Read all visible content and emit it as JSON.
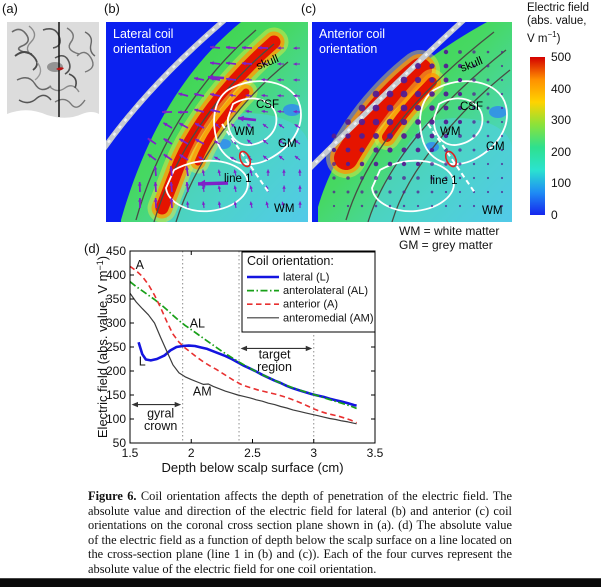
{
  "panel_a": {
    "label": "(a)"
  },
  "panel_b": {
    "label": "(b)",
    "title": [
      "Lateral coil",
      "orientation"
    ],
    "labels": {
      "skull": "skull",
      "csf": "CSF",
      "wm_upper": "WM",
      "gm": "GM",
      "line1": "line 1",
      "wm_lower": "WM"
    }
  },
  "panel_c": {
    "label": "(c)",
    "title": [
      "Anterior coil",
      "orientation"
    ],
    "labels": {
      "skull": "skull",
      "csf": "CSF",
      "wm_upper": "WM",
      "gm": "GM",
      "line1": "line 1",
      "wm_lower": "WM"
    }
  },
  "colorbar": {
    "title_lines": [
      "Electric field",
      "(abs. value,"
    ],
    "unit_base": "V m",
    "unit_sup": "−1",
    "unit_close": ")",
    "ticks": [
      "500",
      "400",
      "300",
      "200",
      "100",
      "0"
    ],
    "gradient_top_to_bottom": [
      "#d40000",
      "#ff9000",
      "#ffd300",
      "#8be23a",
      "#2ee08e",
      "#2be3cf",
      "#1f8df4",
      "#1526ee"
    ]
  },
  "matter_legend": {
    "line1": "WM = white matter",
    "line2": "GM = grey matter"
  },
  "chart_data": {
    "type": "line",
    "panel_label": "(d)",
    "xlabel": "Depth below scalp surface (cm)",
    "ylabel_base": "Electric field (abs. value, V m",
    "ylabel_sup": "−1",
    "ylabel_close": ")",
    "xlim": [
      1.5,
      3.5
    ],
    "ylim": [
      50,
      450
    ],
    "xticks": [
      "1.5",
      "2",
      "2.5",
      "3",
      "3.5"
    ],
    "xtick_values": [
      1.5,
      2,
      2.5,
      3,
      3.5
    ],
    "yticks": [
      50,
      100,
      150,
      200,
      250,
      300,
      350,
      400,
      450
    ],
    "dotted_x": [
      1.93,
      2.39,
      3.0
    ],
    "grid": "off",
    "legend": {
      "title": "Coil orientation:",
      "position": "upper right",
      "entries": [
        {
          "label": "lateral (L)",
          "color": "#1414e0",
          "width": 2.6,
          "dash": ""
        },
        {
          "label": "anterolateral (AL)",
          "color": "#18a018",
          "width": 1.7,
          "dash": "7 2.5 1.5 2.5"
        },
        {
          "label": "anterior (A)",
          "color": "#e83030",
          "width": 1.6,
          "dash": "5.5 3.5"
        },
        {
          "label": "anteromedial (AM)",
          "color": "#3c3c3c",
          "width": 1.2,
          "dash": ""
        }
      ]
    },
    "series": [
      {
        "name": "lateral (L)",
        "points": [
          [
            1.57,
            260
          ],
          [
            1.6,
            235
          ],
          [
            1.63,
            224
          ],
          [
            1.67,
            222
          ],
          [
            1.72,
            225
          ],
          [
            1.78,
            232
          ],
          [
            1.83,
            243
          ],
          [
            1.88,
            250
          ],
          [
            1.93,
            252
          ],
          [
            1.98,
            253
          ],
          [
            2.03,
            252
          ],
          [
            2.08,
            249
          ],
          [
            2.13,
            246
          ],
          [
            2.18,
            241
          ],
          [
            2.23,
            236
          ],
          [
            2.28,
            231
          ],
          [
            2.33,
            225
          ],
          [
            2.38,
            218
          ],
          [
            2.43,
            211
          ],
          [
            2.48,
            205
          ],
          [
            2.53,
            199
          ],
          [
            2.58,
            192
          ],
          [
            2.63,
            186
          ],
          [
            2.68,
            180
          ],
          [
            2.73,
            175
          ],
          [
            2.78,
            169
          ],
          [
            2.83,
            164
          ],
          [
            2.88,
            160
          ],
          [
            2.93,
            156
          ],
          [
            2.98,
            152
          ],
          [
            3.03,
            149
          ],
          [
            3.08,
            146
          ],
          [
            3.13,
            142
          ],
          [
            3.18,
            139
          ],
          [
            3.23,
            136
          ],
          [
            3.28,
            133
          ],
          [
            3.33,
            129
          ],
          [
            3.35,
            128
          ]
        ]
      },
      {
        "name": "anterolateral (AL)",
        "points": [
          [
            1.5,
            386
          ],
          [
            1.55,
            376
          ],
          [
            1.6,
            367
          ],
          [
            1.65,
            358
          ],
          [
            1.7,
            349
          ],
          [
            1.75,
            339
          ],
          [
            1.8,
            328
          ],
          [
            1.85,
            316
          ],
          [
            1.9,
            305
          ],
          [
            1.95,
            295
          ],
          [
            2.0,
            286
          ],
          [
            2.05,
            277
          ],
          [
            2.1,
            268
          ],
          [
            2.15,
            259
          ],
          [
            2.2,
            250
          ],
          [
            2.25,
            241
          ],
          [
            2.3,
            233
          ],
          [
            2.35,
            225
          ],
          [
            2.4,
            217
          ],
          [
            2.45,
            210
          ],
          [
            2.5,
            203
          ],
          [
            2.55,
            196
          ],
          [
            2.6,
            190
          ],
          [
            2.65,
            184
          ],
          [
            2.7,
            178
          ],
          [
            2.75,
            173
          ],
          [
            2.8,
            168
          ],
          [
            2.85,
            163
          ],
          [
            2.9,
            159
          ],
          [
            2.95,
            155
          ],
          [
            3.0,
            151
          ],
          [
            3.05,
            147
          ],
          [
            3.1,
            143
          ],
          [
            3.15,
            139
          ],
          [
            3.2,
            135
          ],
          [
            3.25,
            131
          ],
          [
            3.3,
            127
          ],
          [
            3.35,
            122
          ]
        ]
      },
      {
        "name": "anterior (A)",
        "points": [
          [
            1.5,
            418
          ],
          [
            1.55,
            409
          ],
          [
            1.6,
            397
          ],
          [
            1.65,
            380
          ],
          [
            1.7,
            358
          ],
          [
            1.75,
            332
          ],
          [
            1.8,
            303
          ],
          [
            1.85,
            277
          ],
          [
            1.9,
            260
          ],
          [
            1.95,
            248
          ],
          [
            2.0,
            238
          ],
          [
            2.05,
            228
          ],
          [
            2.1,
            219
          ],
          [
            2.15,
            211
          ],
          [
            2.2,
            204
          ],
          [
            2.25,
            196
          ],
          [
            2.3,
            188
          ],
          [
            2.35,
            180
          ],
          [
            2.4,
            173
          ],
          [
            2.45,
            168
          ],
          [
            2.5,
            164
          ],
          [
            2.55,
            160
          ],
          [
            2.6,
            157
          ],
          [
            2.65,
            154
          ],
          [
            2.7,
            151
          ],
          [
            2.75,
            147
          ],
          [
            2.8,
            143
          ],
          [
            2.85,
            138
          ],
          [
            2.9,
            133
          ],
          [
            2.95,
            127
          ],
          [
            3.0,
            121
          ],
          [
            3.05,
            116
          ],
          [
            3.1,
            112
          ],
          [
            3.15,
            109
          ],
          [
            3.2,
            106
          ],
          [
            3.25,
            102
          ],
          [
            3.3,
            98
          ],
          [
            3.35,
            92
          ]
        ]
      },
      {
        "name": "anteromedial (AM)",
        "points": [
          [
            1.5,
            362
          ],
          [
            1.55,
            344
          ],
          [
            1.6,
            330
          ],
          [
            1.65,
            317
          ],
          [
            1.7,
            300
          ],
          [
            1.75,
            270
          ],
          [
            1.8,
            241
          ],
          [
            1.85,
            213
          ],
          [
            1.9,
            196
          ],
          [
            1.95,
            188
          ],
          [
            2.0,
            182
          ],
          [
            2.05,
            177
          ],
          [
            2.1,
            172
          ],
          [
            2.14,
            173
          ],
          [
            2.18,
            168
          ],
          [
            2.23,
            163
          ],
          [
            2.28,
            158
          ],
          [
            2.33,
            154
          ],
          [
            2.38,
            150
          ],
          [
            2.43,
            147
          ],
          [
            2.48,
            144
          ],
          [
            2.53,
            140
          ],
          [
            2.58,
            137
          ],
          [
            2.63,
            133
          ],
          [
            2.68,
            130
          ],
          [
            2.73,
            126
          ],
          [
            2.78,
            123
          ],
          [
            2.83,
            119
          ],
          [
            2.88,
            116
          ],
          [
            2.93,
            113
          ],
          [
            2.98,
            110
          ],
          [
            3.03,
            107
          ],
          [
            3.08,
            104
          ],
          [
            3.13,
            101
          ],
          [
            3.18,
            99
          ],
          [
            3.23,
            96
          ],
          [
            3.28,
            94
          ],
          [
            3.33,
            91
          ],
          [
            3.35,
            90
          ]
        ]
      }
    ],
    "curve_labels": [
      {
        "text": "A",
        "x": 1.58,
        "y": 412
      },
      {
        "text": "AL",
        "x": 2.05,
        "y": 291
      },
      {
        "text": "L",
        "x": 1.6,
        "y": 211
      },
      {
        "text": "AM",
        "x": 2.09,
        "y": 149
      }
    ],
    "regions": [
      {
        "lines": [
          "gyral",
          "crown"
        ],
        "x1": 1.5,
        "x2": 1.93,
        "arrow_y": 130,
        "label_x": 1.75,
        "label_ys": [
          103,
          77
        ]
      },
      {
        "lines": [
          "target",
          "region"
        ],
        "x1": 2.39,
        "x2": 3.0,
        "arrow_y": 247,
        "label_x": 2.68,
        "label_ys": [
          226,
          200
        ]
      }
    ]
  },
  "caption": {
    "label": "Figure 6.",
    "text": "Coil orientation affects the depth of penetration of the electric field. The absolute value and direction of the electric field for lateral (b) and anterior (c) coil orientations on the coronal cross section plane shown in (a). (d) The absolute value of the electric field as a function of depth below the scalp surface on a line located on the cross-section plane (line 1 in (b) and (c)). Each of the four curves represent the absolute value of the electric field for one coil orientation."
  }
}
